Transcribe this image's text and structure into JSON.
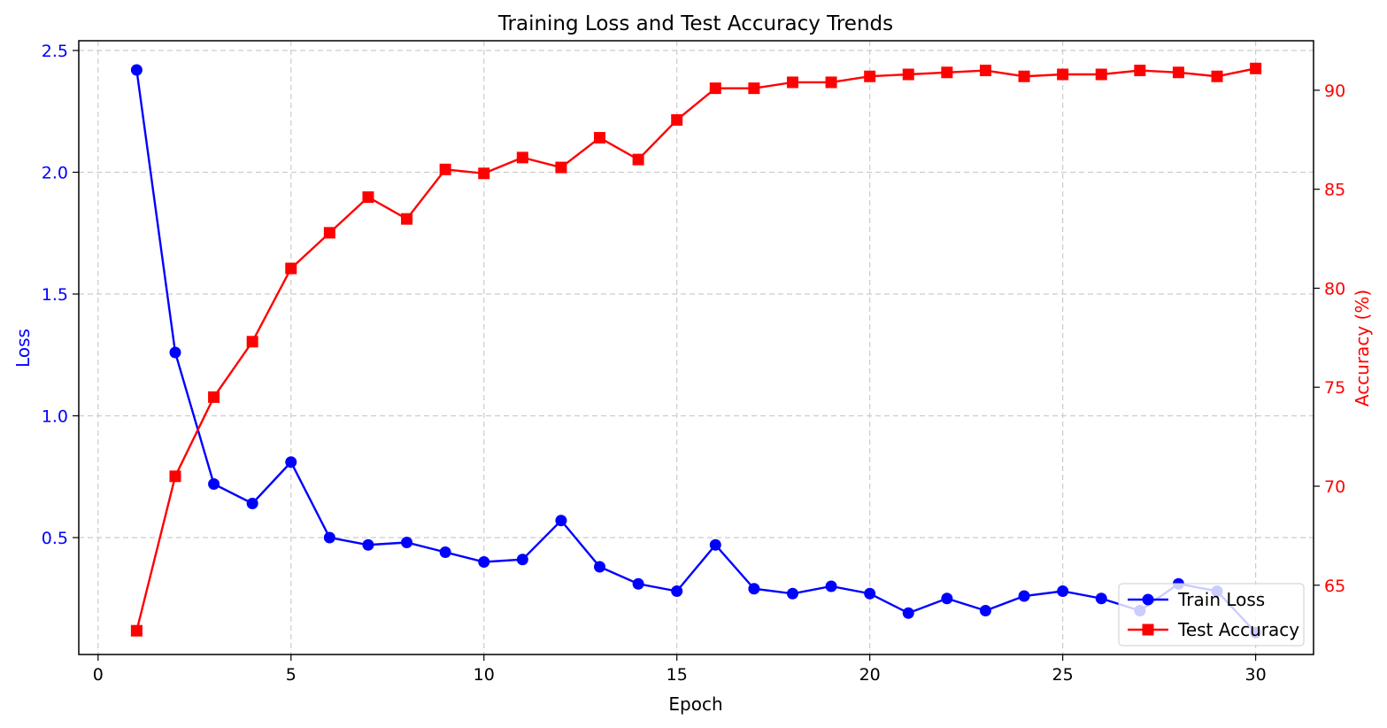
{
  "chart_data": {
    "type": "line",
    "title": "Training Loss and Test Accuracy Trends",
    "xlabel": "Epoch",
    "ylabel_left": "Loss",
    "ylabel_right": "Accuracy (%)",
    "xlim": [
      -0.5,
      31.5
    ],
    "ylim_left": [
      0.02,
      2.54
    ],
    "ylim_right": [
      61.5,
      92.5
    ],
    "x_ticks": [
      0,
      5,
      10,
      15,
      20,
      25,
      30
    ],
    "y_ticks_left": [
      0.5,
      1.0,
      1.5,
      2.0,
      2.5
    ],
    "y_ticks_right": [
      65,
      70,
      75,
      80,
      85,
      90
    ],
    "grid": true,
    "legend_position": "lower-right",
    "x": [
      1,
      2,
      3,
      4,
      5,
      6,
      7,
      8,
      9,
      10,
      11,
      12,
      13,
      14,
      15,
      16,
      17,
      18,
      19,
      20,
      21,
      22,
      23,
      24,
      25,
      26,
      27,
      28,
      29,
      30
    ],
    "series": [
      {
        "name": "Train Loss",
        "axis": "left",
        "color": "#0000ff",
        "marker": "circle",
        "values": [
          2.42,
          1.26,
          0.72,
          0.64,
          0.81,
          0.5,
          0.47,
          0.48,
          0.44,
          0.4,
          0.41,
          0.57,
          0.38,
          0.31,
          0.28,
          0.47,
          0.29,
          0.27,
          0.3,
          0.27,
          0.19,
          0.25,
          0.2,
          0.26,
          0.28,
          0.25,
          0.2,
          0.31,
          0.28,
          0.11
        ]
      },
      {
        "name": "Test Accuracy",
        "axis": "right",
        "color": "#ff0000",
        "marker": "square",
        "values": [
          62.7,
          70.5,
          74.5,
          77.3,
          81.0,
          82.8,
          84.6,
          83.5,
          86.0,
          85.8,
          86.6,
          86.1,
          87.6,
          86.5,
          88.5,
          90.1,
          90.1,
          90.4,
          90.4,
          90.7,
          90.8,
          90.9,
          91.0,
          90.7,
          90.8,
          90.8,
          91.0,
          90.9,
          90.7,
          91.1
        ]
      }
    ]
  }
}
